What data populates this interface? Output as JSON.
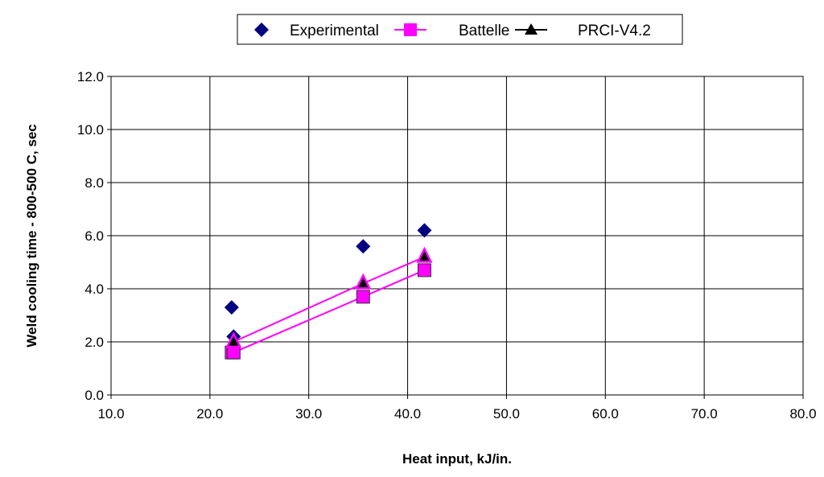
{
  "chart_data": {
    "type": "scatter",
    "title": "",
    "xlabel": "Heat input, kJ/in.",
    "ylabel": "Weld cooling time - 800-500 C, sec",
    "xlim": [
      10,
      80
    ],
    "ylim": [
      0,
      12
    ],
    "xticks": [
      "10.0",
      "20.0",
      "30.0",
      "40.0",
      "50.0",
      "60.0",
      "70.0",
      "80.0"
    ],
    "yticks": [
      "0.0",
      "2.0",
      "4.0",
      "6.0",
      "8.0",
      "10.0",
      "12.0"
    ],
    "grid": true,
    "legend_placement": "top",
    "series": [
      {
        "name": "Experimental",
        "marker": "diamond",
        "color": "#000080",
        "line": false,
        "x": [
          22.2,
          22.4,
          35.5,
          41.7
        ],
        "y": [
          3.3,
          2.2,
          5.6,
          6.2
        ]
      },
      {
        "name": "Battelle",
        "marker": "square",
        "color": "#FF00FF",
        "line": true,
        "x": [
          22.2,
          22.4,
          35.5,
          41.7
        ],
        "y": [
          1.6,
          1.6,
          3.7,
          4.7
        ]
      },
      {
        "name": "PRCI-V4.2",
        "marker": "triangle",
        "color": "#000000",
        "line": true,
        "x": [
          22.4,
          35.5,
          41.7
        ],
        "y": [
          2.0,
          4.2,
          5.2
        ]
      }
    ]
  }
}
